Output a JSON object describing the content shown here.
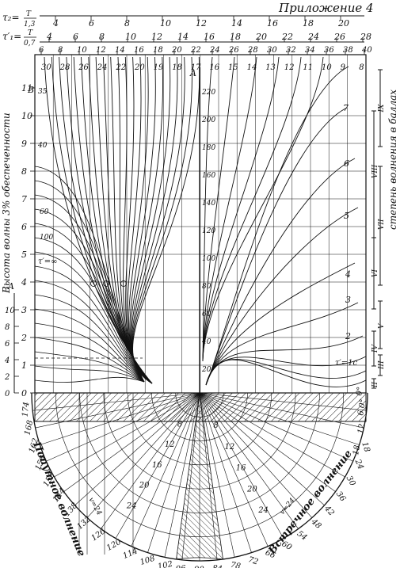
{
  "header": {
    "appendix_label": "Приложение 4"
  },
  "scale_tau2": {
    "label_lhs": "τ₂=",
    "label_num": "T",
    "label_den": "1,3",
    "ticks": [
      "4",
      "6",
      "8",
      "10",
      "12",
      "14",
      "16",
      "18",
      "20"
    ]
  },
  "scale_tau1": {
    "label_lhs": "τ′₁=",
    "label_num": "T",
    "label_den": "0,7",
    "ticks": [
      "4",
      "6",
      "8",
      "10",
      "12",
      "14",
      "16",
      "18",
      "20",
      "22",
      "24",
      "26",
      "28"
    ]
  },
  "scale_period": {
    "ticks": [
      "6",
      "8",
      "10",
      "12",
      "14",
      "16",
      "18",
      "20",
      "22",
      "24",
      "26",
      "28",
      "30",
      "32",
      "34",
      "36",
      "38",
      "40"
    ]
  },
  "left_axis": {
    "title": "Высота волны 3% обеспеченности",
    "top_letter": "B",
    "ticks": [
      "0",
      "1",
      "2",
      "3",
      "4",
      "5",
      "6",
      "7",
      "8",
      "9",
      "10",
      "11"
    ]
  },
  "left_axis_a": {
    "letter": "A",
    "ticks": [
      "0",
      "2",
      "4",
      "6",
      "8",
      "10"
    ]
  },
  "center_axis": {
    "letter": "A",
    "ticks": [
      "20",
      "40",
      "60",
      "80",
      "100",
      "120",
      "140",
      "160",
      "180",
      "200",
      "220"
    ]
  },
  "curve_labels_top": [
    "30",
    "28",
    "26",
    "24",
    "22",
    "20",
    "19",
    "18",
    "17",
    "16",
    "15",
    "14",
    "13",
    "12",
    "11",
    "10",
    "9",
    "8"
  ],
  "curve_labels_right": [
    "7",
    "6",
    "5",
    "4",
    "3",
    "2"
  ],
  "curve_labels_left": [
    "35",
    "40",
    "60",
    "100"
  ],
  "tau_inf_label": "τ′=∞",
  "tau_one_label": "τ′=1c",
  "sea_state": {
    "title": "степень волнения в баллах",
    "grades": [
      "II",
      "III",
      "IV",
      "V",
      "VI",
      "VII",
      "VIII",
      "IX"
    ]
  },
  "right_heading_ticks": [
    "0°",
    "6 0°",
    "12",
    "18"
  ],
  "polar": {
    "left_title": "Попутное волнение",
    "right_title": "Встречное волнение",
    "left_angles": [
      "174",
      "168",
      "162",
      "156",
      "150",
      "144",
      "138",
      "132",
      "126",
      "120",
      "114",
      "108",
      "102",
      "96",
      "90"
    ],
    "right_angles": [
      "84",
      "78",
      "72",
      "66",
      "60",
      "54",
      "48",
      "42",
      "36",
      "30",
      "24",
      "18"
    ],
    "inner_speeds": [
      "8",
      "12",
      "16",
      "20",
      "24"
    ],
    "inner_speeds_right": [
      "8",
      "12",
      "16",
      "20",
      "24"
    ],
    "v_label_left": "v=24",
    "v_label_right": "v=24"
  }
}
